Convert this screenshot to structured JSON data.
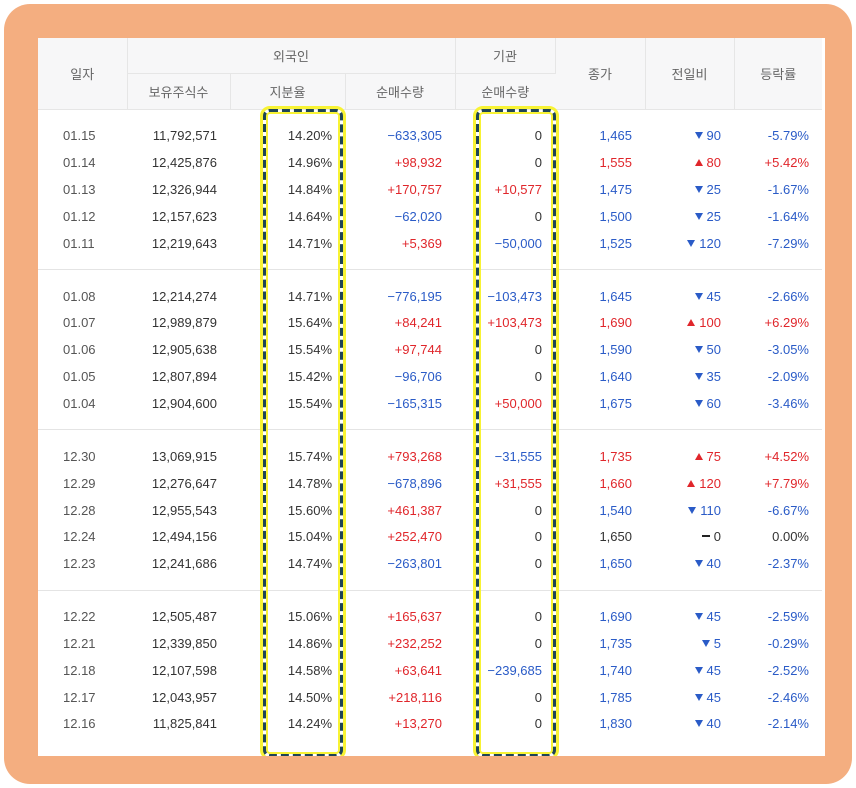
{
  "header": {
    "date": "일자",
    "foreign": "외국인",
    "institution": "기관",
    "holdings": "보유주식수",
    "share_ratio": "지분율",
    "foreign_net": "순매수량",
    "inst_net": "순매수량",
    "close": "종가",
    "change": "전일비",
    "rate": "등락률"
  },
  "colors": {
    "up": "#e0262b",
    "down": "#2a5bc7",
    "frame": "#f4ae80",
    "highlight_border": "#1e4456",
    "highlight_glow": "#f8f334"
  },
  "groups": [
    {
      "rows": [
        {
          "date": "01.15",
          "holdings": "11,792,571",
          "ratio": "14.20%",
          "fnet": "−633,305",
          "fdir": "down",
          "inet": "0",
          "idir": "flat",
          "close": "1,465",
          "cdir": "down",
          "chg": "90",
          "rate": "-5.79%"
        },
        {
          "date": "01.14",
          "holdings": "12,425,876",
          "ratio": "14.96%",
          "fnet": "+98,932",
          "fdir": "up",
          "inet": "0",
          "idir": "flat",
          "close": "1,555",
          "cdir": "up",
          "chg": "80",
          "rate": "+5.42%"
        },
        {
          "date": "01.13",
          "holdings": "12,326,944",
          "ratio": "14.84%",
          "fnet": "+170,757",
          "fdir": "up",
          "inet": "+10,577",
          "idir": "up",
          "close": "1,475",
          "cdir": "down",
          "chg": "25",
          "rate": "-1.67%"
        },
        {
          "date": "01.12",
          "holdings": "12,157,623",
          "ratio": "14.64%",
          "fnet": "−62,020",
          "fdir": "down",
          "inet": "0",
          "idir": "flat",
          "close": "1,500",
          "cdir": "down",
          "chg": "25",
          "rate": "-1.64%"
        },
        {
          "date": "01.11",
          "holdings": "12,219,643",
          "ratio": "14.71%",
          "fnet": "+5,369",
          "fdir": "up",
          "inet": "−50,000",
          "idir": "down",
          "close": "1,525",
          "cdir": "down",
          "chg": "120",
          "rate": "-7.29%"
        }
      ]
    },
    {
      "rows": [
        {
          "date": "01.08",
          "holdings": "12,214,274",
          "ratio": "14.71%",
          "fnet": "−776,195",
          "fdir": "down",
          "inet": "−103,473",
          "idir": "down",
          "close": "1,645",
          "cdir": "down",
          "chg": "45",
          "rate": "-2.66%"
        },
        {
          "date": "01.07",
          "holdings": "12,989,879",
          "ratio": "15.64%",
          "fnet": "+84,241",
          "fdir": "up",
          "inet": "+103,473",
          "idir": "up",
          "close": "1,690",
          "cdir": "up",
          "chg": "100",
          "rate": "+6.29%"
        },
        {
          "date": "01.06",
          "holdings": "12,905,638",
          "ratio": "15.54%",
          "fnet": "+97,744",
          "fdir": "up",
          "inet": "0",
          "idir": "flat",
          "close": "1,590",
          "cdir": "down",
          "chg": "50",
          "rate": "-3.05%"
        },
        {
          "date": "01.05",
          "holdings": "12,807,894",
          "ratio": "15.42%",
          "fnet": "−96,706",
          "fdir": "down",
          "inet": "0",
          "idir": "flat",
          "close": "1,640",
          "cdir": "down",
          "chg": "35",
          "rate": "-2.09%"
        },
        {
          "date": "01.04",
          "holdings": "12,904,600",
          "ratio": "15.54%",
          "fnet": "−165,315",
          "fdir": "down",
          "inet": "+50,000",
          "idir": "up",
          "close": "1,675",
          "cdir": "down",
          "chg": "60",
          "rate": "-3.46%"
        }
      ]
    },
    {
      "rows": [
        {
          "date": "12.30",
          "holdings": "13,069,915",
          "ratio": "15.74%",
          "fnet": "+793,268",
          "fdir": "up",
          "inet": "−31,555",
          "idir": "down",
          "close": "1,735",
          "cdir": "up",
          "chg": "75",
          "rate": "+4.52%"
        },
        {
          "date": "12.29",
          "holdings": "12,276,647",
          "ratio": "14.78%",
          "fnet": "−678,896",
          "fdir": "down",
          "inet": "+31,555",
          "idir": "up",
          "close": "1,660",
          "cdir": "up",
          "chg": "120",
          "rate": "+7.79%"
        },
        {
          "date": "12.28",
          "holdings": "12,955,543",
          "ratio": "15.60%",
          "fnet": "+461,387",
          "fdir": "up",
          "inet": "0",
          "idir": "flat",
          "close": "1,540",
          "cdir": "down",
          "chg": "110",
          "rate": "-6.67%"
        },
        {
          "date": "12.24",
          "holdings": "12,494,156",
          "ratio": "15.04%",
          "fnet": "+252,470",
          "fdir": "up",
          "inet": "0",
          "idir": "flat",
          "close": "1,650",
          "cdir": "flat",
          "chg": "0",
          "rate": "0.00%"
        },
        {
          "date": "12.23",
          "holdings": "12,241,686",
          "ratio": "14.74%",
          "fnet": "−263,801",
          "fdir": "down",
          "inet": "0",
          "idir": "flat",
          "close": "1,650",
          "cdir": "down",
          "chg": "40",
          "rate": "-2.37%"
        }
      ]
    },
    {
      "rows": [
        {
          "date": "12.22",
          "holdings": "12,505,487",
          "ratio": "15.06%",
          "fnet": "+165,637",
          "fdir": "up",
          "inet": "0",
          "idir": "flat",
          "close": "1,690",
          "cdir": "down",
          "chg": "45",
          "rate": "-2.59%"
        },
        {
          "date": "12.21",
          "holdings": "12,339,850",
          "ratio": "14.86%",
          "fnet": "+232,252",
          "fdir": "up",
          "inet": "0",
          "idir": "flat",
          "close": "1,735",
          "cdir": "down",
          "chg": "5",
          "rate": "-0.29%"
        },
        {
          "date": "12.18",
          "holdings": "12,107,598",
          "ratio": "14.58%",
          "fnet": "+63,641",
          "fdir": "up",
          "inet": "−239,685",
          "idir": "down",
          "close": "1,740",
          "cdir": "down",
          "chg": "45",
          "rate": "-2.52%"
        },
        {
          "date": "12.17",
          "holdings": "12,043,957",
          "ratio": "14.50%",
          "fnet": "+218,116",
          "fdir": "up",
          "inet": "0",
          "idir": "flat",
          "close": "1,785",
          "cdir": "down",
          "chg": "45",
          "rate": "-2.46%"
        },
        {
          "date": "12.16",
          "holdings": "11,825,841",
          "ratio": "14.24%",
          "fnet": "+13,270",
          "fdir": "up",
          "inet": "0",
          "idir": "flat",
          "close": "1,830",
          "cdir": "down",
          "chg": "40",
          "rate": "-2.14%"
        }
      ]
    }
  ]
}
